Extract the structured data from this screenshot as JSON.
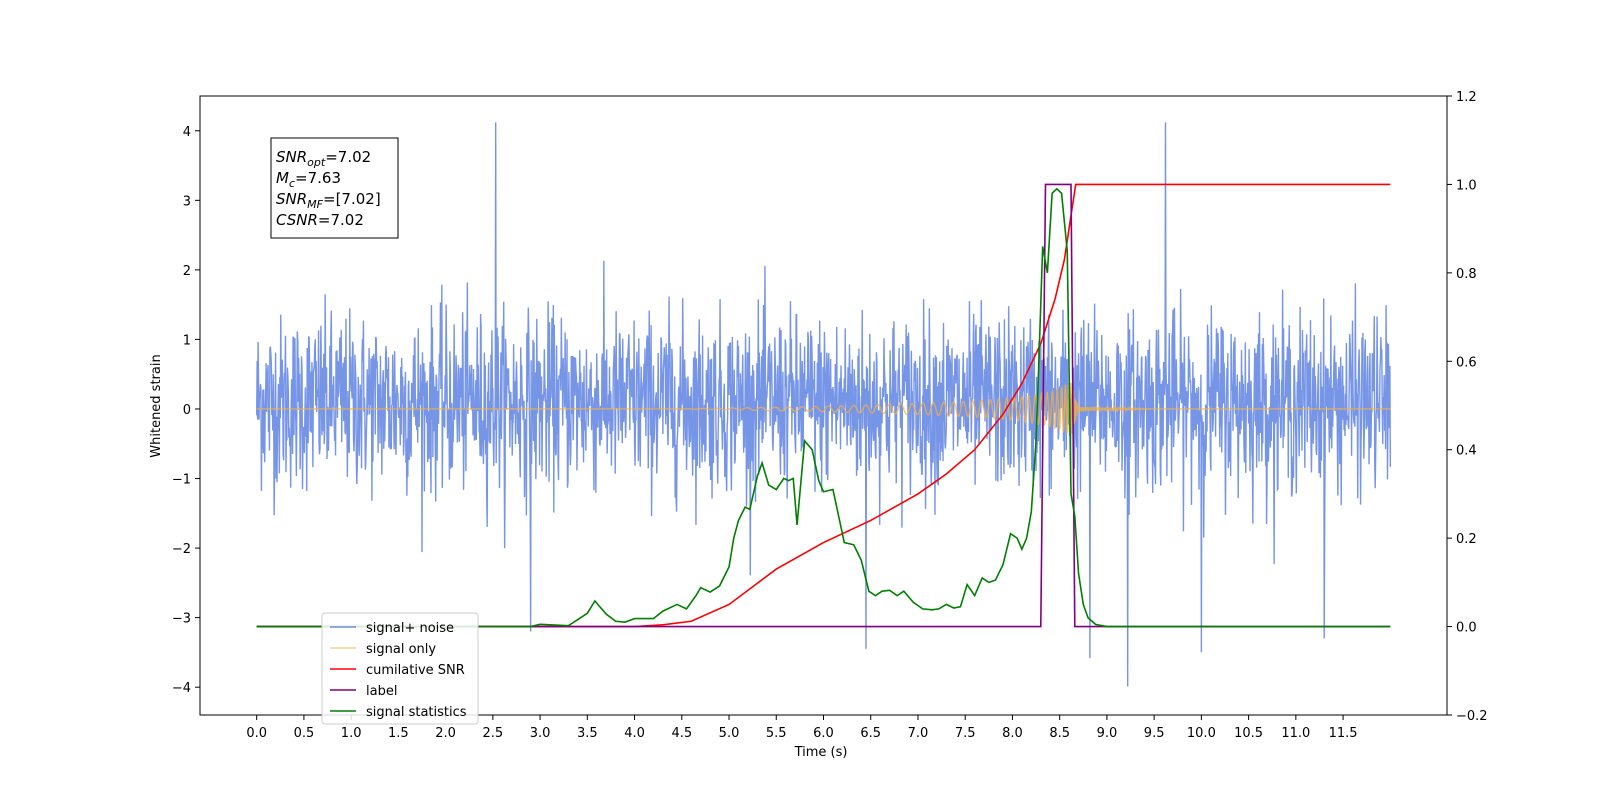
{
  "chart_data": {
    "type": "line",
    "xlabel": "Time (s)",
    "ylabel": "Whitened strain",
    "xlim": [
      -0.6,
      12.6
    ],
    "ylim": [
      -4.4,
      4.5
    ],
    "y2lim": [
      -0.2,
      1.2
    ],
    "x_ticks": [
      0.0,
      0.5,
      1.0,
      1.5,
      2.0,
      2.5,
      3.0,
      3.5,
      4.0,
      4.5,
      5.0,
      5.5,
      6.0,
      6.5,
      7.0,
      7.5,
      8.0,
      8.5,
      9.0,
      9.5,
      10.0,
      10.5,
      11.0,
      11.5
    ],
    "x_tick_labels": [
      "0.0",
      "0.5",
      "1.0",
      "1.5",
      "2.0",
      "2.5",
      "3.0",
      "3.5",
      "4.0",
      "4.5",
      "5.0",
      "5.5",
      "6.0",
      "6.5",
      "7.0",
      "7.5",
      "8.0",
      "8.5",
      "9.0",
      "9.5",
      "10.0",
      "10.5",
      "11.0",
      "11.5"
    ],
    "y_ticks": [
      -4,
      -3,
      -2,
      -1,
      0,
      1,
      2,
      3,
      4
    ],
    "y_tick_labels": [
      "−4",
      "−3",
      "−2",
      "−1",
      "0",
      "1",
      "2",
      "3",
      "4"
    ],
    "y2_ticks": [
      -0.2,
      0.0,
      0.2,
      0.4,
      0.6,
      0.8,
      1.0,
      1.2
    ],
    "y2_tick_labels": [
      "−0.2",
      "0.0",
      "0.2",
      "0.4",
      "0.6",
      "0.8",
      "1.0",
      "1.2"
    ],
    "grid": false,
    "legend_position": "lower-left",
    "annotation": {
      "lines": [
        {
          "base": "SNR",
          "sub": "opt",
          "rest": "=7.02"
        },
        {
          "base": "M",
          "sub": "c",
          "rest": "=7.63"
        },
        {
          "base": "SNR",
          "sub": "MF",
          "rest": "=[7.02]"
        },
        {
          "base": "CSNR",
          "sub": "",
          "rest": "=7.02"
        }
      ]
    },
    "series": [
      {
        "name": "signal+ noise",
        "axis": "left",
        "color": "#6f8fe6",
        "kind": "noise",
        "x_range": [
          0.0,
          12.0
        ],
        "envelope_typical": [
          -1.4,
          1.6
        ],
        "max": 4.12,
        "min": -3.99,
        "notable_spikes": [
          [
            2.53,
            4.12
          ],
          [
            9.62,
            4.12
          ],
          [
            6.45,
            -3.45
          ],
          [
            8.82,
            -3.58
          ],
          [
            9.22,
            -3.99
          ],
          [
            10.0,
            -3.5
          ],
          [
            11.3,
            -3.3
          ],
          [
            2.9,
            -3.2
          ]
        ]
      },
      {
        "name": "signal only",
        "axis": "left",
        "color": "#f5b041",
        "kind": "chirp",
        "start": 4.5,
        "merger": 8.62,
        "peak_amplitude": 0.4,
        "amplitude": [
          [
            4.5,
            0.0
          ],
          [
            6.0,
            0.04
          ],
          [
            7.0,
            0.08
          ],
          [
            7.5,
            0.11
          ],
          [
            8.0,
            0.16
          ],
          [
            8.3,
            0.22
          ],
          [
            8.5,
            0.3
          ],
          [
            8.62,
            0.4
          ],
          [
            8.7,
            0.03
          ],
          [
            9.5,
            0.0
          ]
        ]
      },
      {
        "name": "cumilative SNR",
        "axis": "right",
        "color": "#ff0000",
        "points": [
          [
            0.0,
            0.0
          ],
          [
            4.0,
            0.0
          ],
          [
            4.3,
            0.004
          ],
          [
            4.6,
            0.012
          ],
          [
            5.0,
            0.05
          ],
          [
            5.5,
            0.13
          ],
          [
            6.0,
            0.19
          ],
          [
            6.5,
            0.24
          ],
          [
            7.0,
            0.3
          ],
          [
            7.3,
            0.345
          ],
          [
            7.6,
            0.4
          ],
          [
            7.9,
            0.48
          ],
          [
            8.1,
            0.55
          ],
          [
            8.3,
            0.64
          ],
          [
            8.45,
            0.74
          ],
          [
            8.55,
            0.83
          ],
          [
            8.62,
            0.93
          ],
          [
            8.67,
            1.0
          ],
          [
            12.0,
            1.0
          ]
        ]
      },
      {
        "name": "label",
        "axis": "right",
        "color": "#800080",
        "points": [
          [
            0.0,
            0.0
          ],
          [
            8.3,
            0.0
          ],
          [
            8.35,
            1.0
          ],
          [
            8.62,
            1.0
          ],
          [
            8.66,
            0.0
          ],
          [
            12.0,
            0.0
          ]
        ]
      },
      {
        "name": "signal statistics",
        "axis": "right",
        "color": "#008000",
        "points": [
          [
            0.0,
            0.0
          ],
          [
            2.9,
            0.0
          ],
          [
            3.0,
            0.005
          ],
          [
            3.3,
            0.002
          ],
          [
            3.5,
            0.03
          ],
          [
            3.58,
            0.058
          ],
          [
            3.7,
            0.028
          ],
          [
            3.8,
            0.012
          ],
          [
            3.9,
            0.01
          ],
          [
            4.0,
            0.018
          ],
          [
            4.2,
            0.018
          ],
          [
            4.3,
            0.035
          ],
          [
            4.45,
            0.05
          ],
          [
            4.55,
            0.04
          ],
          [
            4.65,
            0.07
          ],
          [
            4.7,
            0.088
          ],
          [
            4.8,
            0.078
          ],
          [
            4.9,
            0.092
          ],
          [
            5.0,
            0.135
          ],
          [
            5.05,
            0.2
          ],
          [
            5.1,
            0.24
          ],
          [
            5.17,
            0.27
          ],
          [
            5.22,
            0.265
          ],
          [
            5.3,
            0.34
          ],
          [
            5.35,
            0.37
          ],
          [
            5.42,
            0.32
          ],
          [
            5.5,
            0.31
          ],
          [
            5.58,
            0.335
          ],
          [
            5.63,
            0.33
          ],
          [
            5.68,
            0.335
          ],
          [
            5.72,
            0.23
          ],
          [
            5.8,
            0.42
          ],
          [
            5.88,
            0.4
          ],
          [
            5.95,
            0.33
          ],
          [
            6.0,
            0.305
          ],
          [
            6.1,
            0.31
          ],
          [
            6.15,
            0.26
          ],
          [
            6.22,
            0.19
          ],
          [
            6.32,
            0.185
          ],
          [
            6.4,
            0.15
          ],
          [
            6.48,
            0.08
          ],
          [
            6.55,
            0.07
          ],
          [
            6.62,
            0.08
          ],
          [
            6.7,
            0.082
          ],
          [
            6.78,
            0.07
          ],
          [
            6.85,
            0.08
          ],
          [
            6.95,
            0.055
          ],
          [
            7.05,
            0.04
          ],
          [
            7.15,
            0.038
          ],
          [
            7.22,
            0.04
          ],
          [
            7.3,
            0.05
          ],
          [
            7.38,
            0.042
          ],
          [
            7.45,
            0.045
          ],
          [
            7.52,
            0.095
          ],
          [
            7.6,
            0.07
          ],
          [
            7.68,
            0.11
          ],
          [
            7.75,
            0.1
          ],
          [
            7.82,
            0.105
          ],
          [
            7.9,
            0.14
          ],
          [
            7.98,
            0.21
          ],
          [
            8.05,
            0.2
          ],
          [
            8.1,
            0.175
          ],
          [
            8.15,
            0.2
          ],
          [
            8.2,
            0.26
          ],
          [
            8.25,
            0.42
          ],
          [
            8.28,
            0.6
          ],
          [
            8.32,
            0.86
          ],
          [
            8.37,
            0.8
          ],
          [
            8.42,
            0.98
          ],
          [
            8.47,
            0.99
          ],
          [
            8.52,
            0.98
          ],
          [
            8.58,
            0.85
          ],
          [
            8.62,
            0.3
          ],
          [
            8.66,
            0.25
          ],
          [
            8.7,
            0.12
          ],
          [
            8.75,
            0.05
          ],
          [
            8.8,
            0.02
          ],
          [
            8.88,
            0.005
          ],
          [
            9.0,
            0.0
          ],
          [
            12.0,
            0.0
          ]
        ]
      }
    ]
  }
}
